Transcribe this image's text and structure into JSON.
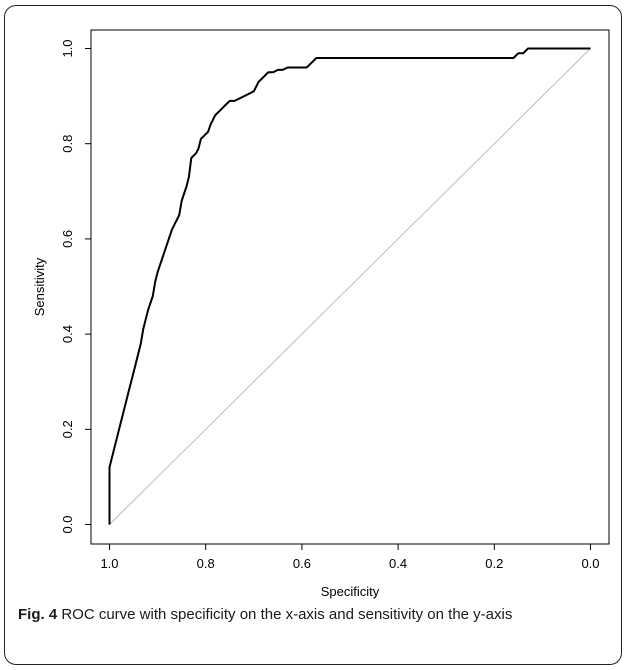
{
  "figure": {
    "label": "Fig. 4",
    "caption": " ROC curve with specificity on the x-axis and sensitivity on the y-axis"
  },
  "chart_data": {
    "type": "line",
    "title": "",
    "xlabel": "Specificity",
    "ylabel": "Sensitivity",
    "xlim": [
      1.0,
      0.0
    ],
    "ylim": [
      0.0,
      1.0
    ],
    "x_reversed": true,
    "x_ticks": [
      "1.0",
      "0.8",
      "0.6",
      "0.4",
      "0.2",
      "0.0"
    ],
    "y_ticks": [
      "0.0",
      "0.2",
      "0.4",
      "0.6",
      "0.8",
      "1.0"
    ],
    "grid": false,
    "colors": {
      "roc": "#000000",
      "reference": "#bdbdbd",
      "axis": "#000000"
    },
    "series": [
      {
        "x": [
          1.0,
          1.0,
          0.99,
          0.98,
          0.97,
          0.96,
          0.95,
          0.94,
          0.935,
          0.93,
          0.925,
          0.92,
          0.91,
          0.905,
          0.9,
          0.89,
          0.88,
          0.87,
          0.86,
          0.855,
          0.85,
          0.84,
          0.835,
          0.83,
          0.82,
          0.815,
          0.81,
          0.8,
          0.795,
          0.79,
          0.78,
          0.775,
          0.77,
          0.76,
          0.75,
          0.74,
          0.72,
          0.7,
          0.695,
          0.69,
          0.68,
          0.67,
          0.66,
          0.65,
          0.64,
          0.63,
          0.61,
          0.59,
          0.58,
          0.575,
          0.57,
          0.56,
          0.5,
          0.4,
          0.3,
          0.2,
          0.16,
          0.155,
          0.15,
          0.14,
          0.13,
          0.12,
          0.1,
          0.05,
          0.0
        ],
        "y": [
          0.0,
          0.12,
          0.16,
          0.2,
          0.24,
          0.28,
          0.32,
          0.36,
          0.38,
          0.41,
          0.43,
          0.45,
          0.48,
          0.51,
          0.53,
          0.56,
          0.59,
          0.62,
          0.64,
          0.65,
          0.68,
          0.71,
          0.73,
          0.77,
          0.78,
          0.79,
          0.81,
          0.82,
          0.825,
          0.84,
          0.86,
          0.865,
          0.87,
          0.88,
          0.89,
          0.89,
          0.9,
          0.91,
          0.92,
          0.93,
          0.94,
          0.95,
          0.95,
          0.955,
          0.955,
          0.96,
          0.96,
          0.96,
          0.97,
          0.975,
          0.98,
          0.98,
          0.98,
          0.98,
          0.98,
          0.98,
          0.98,
          0.985,
          0.99,
          0.99,
          1.0,
          1.0,
          1.0,
          1.0,
          1.0
        ]
      }
    ]
  }
}
